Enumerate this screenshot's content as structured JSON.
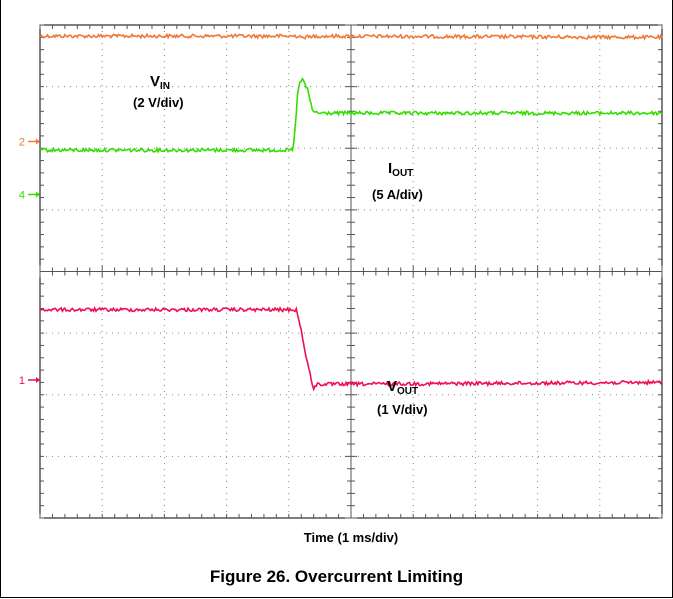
{
  "caption": "Figure 26. Overcurrent Limiting",
  "chart_data": {
    "type": "line",
    "title": "",
    "xlabel": "Time (1 ms/div)",
    "ylabel": "",
    "grid": true,
    "divisions": {
      "x": 10,
      "y": 8
    },
    "x_unit_per_div": "1 ms",
    "xlim": [
      0,
      10
    ],
    "ylim": [
      0,
      8
    ],
    "series": [
      {
        "name": "VIN",
        "label_main": "V",
        "label_sub": "IN",
        "scale": "(2 V/div)",
        "marker": "2",
        "color": "#f07838",
        "points": [
          [
            0,
            7.82
          ],
          [
            4.2,
            7.82
          ],
          [
            4.25,
            7.75
          ],
          [
            4.3,
            7.86
          ],
          [
            4.35,
            7.78
          ],
          [
            4.4,
            7.82
          ],
          [
            10,
            7.8
          ]
        ]
      },
      {
        "name": "IOUT",
        "label_main": "I",
        "label_sub": "OUT",
        "scale": "(5 A/div)",
        "marker": "4",
        "color": "#33dd00",
        "points": [
          [
            0,
            5.97
          ],
          [
            4.07,
            5.97
          ],
          [
            4.1,
            6.3
          ],
          [
            4.15,
            7.0
          ],
          [
            4.22,
            7.12
          ],
          [
            4.3,
            6.95
          ],
          [
            4.38,
            6.62
          ],
          [
            4.45,
            6.57
          ],
          [
            10,
            6.57
          ]
        ]
      },
      {
        "name": "VOUT",
        "label_main": "V",
        "label_sub": "OUT",
        "scale": "(1 V/div)",
        "marker": "1",
        "color": "#ee1050",
        "points": [
          [
            0,
            3.38
          ],
          [
            4.12,
            3.38
          ],
          [
            4.2,
            3.05
          ],
          [
            4.28,
            2.6
          ],
          [
            4.35,
            2.3
          ],
          [
            4.4,
            2.1
          ],
          [
            4.45,
            2.17
          ],
          [
            10,
            2.2
          ]
        ]
      }
    ]
  }
}
